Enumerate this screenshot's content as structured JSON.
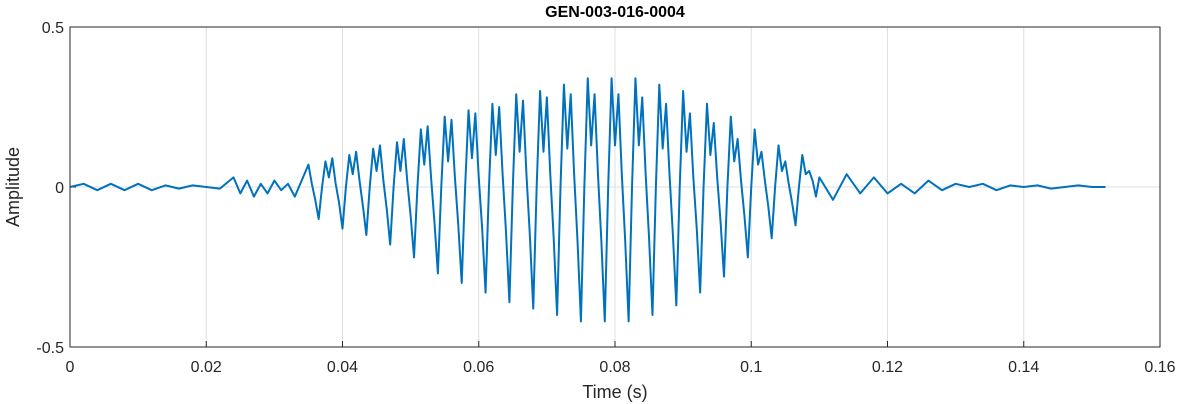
{
  "chart_data": {
    "type": "line",
    "title": "GEN-003-016-0004",
    "xlabel": "Time (s)",
    "ylabel": "Amplitude",
    "color": "#0072bd",
    "grid": true,
    "xlim": [
      0,
      0.16
    ],
    "xticks": [
      0,
      0.02,
      0.04,
      0.06,
      0.08,
      0.1,
      0.12,
      0.14,
      0.16
    ],
    "ylim": [
      -0.5,
      0.5
    ],
    "yticks": [
      -0.5,
      0,
      0.5
    ],
    "x": [
      0,
      0.002,
      0.004,
      0.006,
      0.008,
      0.01,
      0.012,
      0.014,
      0.016,
      0.018,
      0.02,
      0.022,
      0.024,
      0.025,
      0.026,
      0.027,
      0.028,
      0.029,
      0.03,
      0.031,
      0.032,
      0.033,
      0.034,
      0.035,
      0.0355,
      0.036,
      0.0365,
      0.037,
      0.0375,
      0.038,
      0.0385,
      0.039,
      0.0395,
      0.04,
      0.0405,
      0.041,
      0.0415,
      0.042,
      0.0425,
      0.043,
      0.0435,
      0.044,
      0.0445,
      0.045,
      0.0455,
      0.046,
      0.0465,
      0.047,
      0.0475,
      0.048,
      0.0485,
      0.049,
      0.0495,
      0.05,
      0.0505,
      0.051,
      0.0515,
      0.052,
      0.0525,
      0.053,
      0.0535,
      0.054,
      0.0545,
      0.055,
      0.0555,
      0.056,
      0.0565,
      0.057,
      0.0575,
      0.058,
      0.0585,
      0.059,
      0.0595,
      0.06,
      0.0605,
      0.061,
      0.0615,
      0.062,
      0.0625,
      0.063,
      0.0635,
      0.064,
      0.0645,
      0.065,
      0.0655,
      0.066,
      0.0665,
      0.067,
      0.0675,
      0.068,
      0.0685,
      0.069,
      0.0695,
      0.07,
      0.0705,
      0.071,
      0.0715,
      0.072,
      0.0725,
      0.073,
      0.0735,
      0.074,
      0.0745,
      0.075,
      0.0755,
      0.076,
      0.0765,
      0.077,
      0.0775,
      0.078,
      0.0785,
      0.079,
      0.0795,
      0.08,
      0.0805,
      0.081,
      0.0815,
      0.082,
      0.0825,
      0.083,
      0.0835,
      0.084,
      0.0845,
      0.085,
      0.0855,
      0.086,
      0.0865,
      0.087,
      0.0875,
      0.088,
      0.0885,
      0.089,
      0.0895,
      0.09,
      0.0905,
      0.091,
      0.0915,
      0.092,
      0.0925,
      0.093,
      0.0935,
      0.094,
      0.0945,
      0.095,
      0.0955,
      0.096,
      0.0965,
      0.097,
      0.0975,
      0.098,
      0.0985,
      0.099,
      0.0995,
      0.1,
      0.1005,
      0.101,
      0.1015,
      0.102,
      0.1025,
      0.103,
      0.1035,
      0.104,
      0.1045,
      0.105,
      0.1055,
      0.106,
      0.1065,
      0.107,
      0.1075,
      0.108,
      0.1085,
      0.109,
      0.1095,
      0.11,
      0.112,
      0.114,
      0.116,
      0.118,
      0.12,
      0.122,
      0.124,
      0.126,
      0.128,
      0.13,
      0.132,
      0.134,
      0.136,
      0.138,
      0.14,
      0.142,
      0.144,
      0.146,
      0.148,
      0.15,
      0.152
    ],
    "values": [
      0,
      0.01,
      -0.01,
      0.01,
      -0.01,
      0.01,
      -0.01,
      0.005,
      -0.005,
      0.005,
      0,
      -0.005,
      0.03,
      -0.02,
      0.02,
      -0.03,
      0.01,
      -0.02,
      0.02,
      -0.01,
      0.01,
      -0.03,
      0.02,
      0.07,
      0.01,
      -0.04,
      -0.1,
      0,
      0.08,
      0.03,
      0.09,
      0.01,
      -0.05,
      -0.13,
      0,
      0.1,
      0.04,
      0.11,
      0.02,
      -0.06,
      -0.15,
      0,
      0.12,
      0.05,
      0.13,
      0.02,
      -0.07,
      -0.18,
      0,
      0.14,
      0.05,
      0.15,
      0.02,
      -0.09,
      -0.22,
      0,
      0.18,
      0.07,
      0.19,
      0.03,
      -0.11,
      -0.27,
      0,
      0.22,
      0.08,
      0.21,
      0.03,
      -0.12,
      -0.3,
      0,
      0.24,
      0.09,
      0.23,
      0.03,
      -0.13,
      -0.33,
      0,
      0.26,
      0.1,
      0.25,
      0.04,
      -0.14,
      -0.36,
      0,
      0.29,
      0.11,
      0.27,
      0.04,
      -0.15,
      -0.38,
      0,
      0.3,
      0.11,
      0.28,
      0.04,
      -0.16,
      -0.4,
      0,
      0.32,
      0.12,
      0.29,
      0.04,
      -0.17,
      -0.42,
      0,
      0.34,
      0.13,
      0.29,
      0.04,
      -0.17,
      -0.42,
      0,
      0.34,
      0.13,
      0.29,
      0.04,
      -0.17,
      -0.42,
      0,
      0.34,
      0.13,
      0.28,
      0.04,
      -0.16,
      -0.4,
      0,
      0.32,
      0.12,
      0.26,
      0.04,
      -0.15,
      -0.37,
      0,
      0.3,
      0.11,
      0.23,
      0.03,
      -0.13,
      -0.33,
      0,
      0.26,
      0.1,
      0.2,
      0.03,
      -0.11,
      -0.28,
      0,
      0.22,
      0.08,
      0.15,
      0.02,
      -0.09,
      -0.22,
      0,
      0.18,
      0.07,
      0.11,
      0.02,
      -0.06,
      -0.16,
      0,
      0.13,
      0.05,
      0.08,
      0.01,
      -0.05,
      -0.12,
      0,
      0.1,
      0.04,
      0.05,
      0.02,
      -0.03,
      0.03,
      -0.04,
      0.04,
      -0.02,
      0.03,
      -0.02,
      0.01,
      -0.02,
      0.02,
      -0.01,
      0.01,
      0,
      0.01,
      -0.01,
      0.005,
      0,
      0.005,
      -0.005,
      0,
      0.005,
      0,
      0
    ]
  }
}
